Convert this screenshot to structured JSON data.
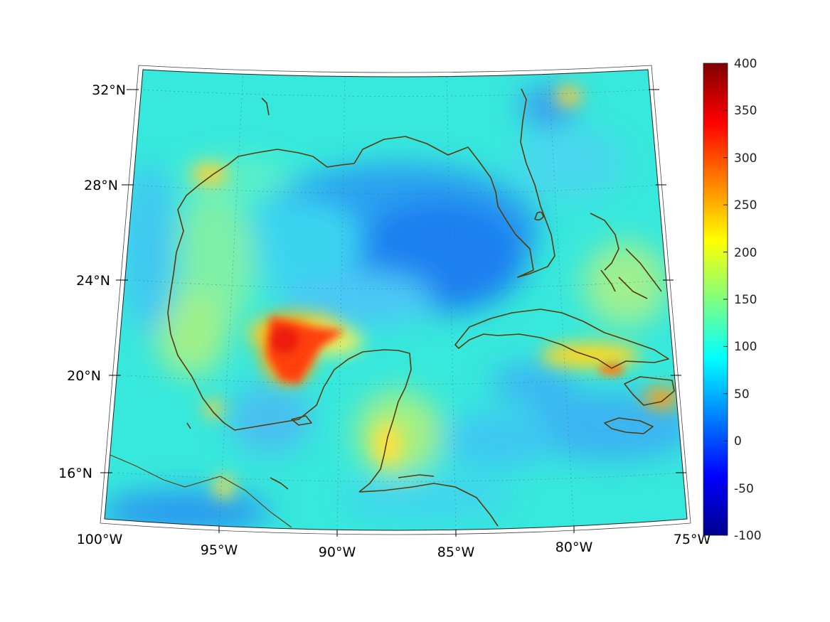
{
  "map": {
    "projection": "conic (Lambert-style)",
    "field": "colored scalar field over Gulf of Mexico and Caribbean",
    "lon_ticks": [
      "100°W",
      "95°W",
      "90°W",
      "85°W",
      "80°W",
      "75°W"
    ],
    "lat_ticks": [
      "16°N",
      "20°N",
      "24°N",
      "28°N",
      "32°N"
    ],
    "grid": true
  },
  "colorbar": {
    "colormap": "jet",
    "min": -100,
    "max": 400,
    "ticks": [
      "400",
      "350",
      "300",
      "250",
      "200",
      "150",
      "100",
      "50",
      "0",
      "-50",
      "-100"
    ]
  },
  "colors": {
    "coastline": "#5a3a08",
    "background": "#ffffff"
  }
}
